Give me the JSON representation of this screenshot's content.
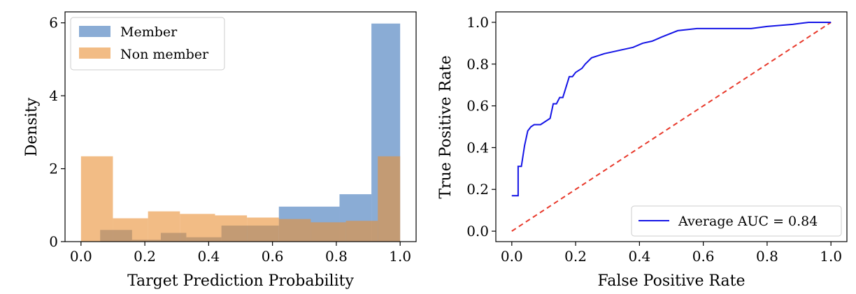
{
  "chart_data": [
    {
      "type": "bar",
      "subtype": "histogram",
      "xlabel": "Target Prediction Probability",
      "ylabel": "Density",
      "xlim": [
        -0.05,
        1.05
      ],
      "ylim": [
        0,
        6.3
      ],
      "xticks": [
        "0.0",
        "0.2",
        "0.4",
        "0.6",
        "0.8",
        "1.0"
      ],
      "yticks": [
        "0",
        "2",
        "4",
        "6"
      ],
      "grid": false,
      "legend_position": "top-left",
      "series": [
        {
          "name": "Member",
          "color": "#4c7fbf",
          "opacity": 0.65,
          "bins": [
            {
              "x0": 0.06,
              "x1": 0.16,
              "y": 0.32
            },
            {
              "x0": 0.16,
              "x1": 0.25,
              "y": 0.05
            },
            {
              "x0": 0.25,
              "x1": 0.33,
              "y": 0.24
            },
            {
              "x0": 0.33,
              "x1": 0.44,
              "y": 0.12
            },
            {
              "x0": 0.44,
              "x1": 0.62,
              "y": 0.44
            },
            {
              "x0": 0.62,
              "x1": 0.81,
              "y": 0.96
            },
            {
              "x0": 0.81,
              "x1": 0.91,
              "y": 1.3
            },
            {
              "x0": 0.91,
              "x1": 1.0,
              "y": 5.98
            }
          ]
        },
        {
          "name": "Non member",
          "color": "#ea8f34",
          "opacity": 0.6,
          "bins": [
            {
              "x0": 0.0,
              "x1": 0.1,
              "y": 2.34
            },
            {
              "x0": 0.1,
              "x1": 0.21,
              "y": 0.64
            },
            {
              "x0": 0.21,
              "x1": 0.31,
              "y": 0.83
            },
            {
              "x0": 0.31,
              "x1": 0.42,
              "y": 0.76
            },
            {
              "x0": 0.42,
              "x1": 0.52,
              "y": 0.72
            },
            {
              "x0": 0.52,
              "x1": 0.62,
              "y": 0.66
            },
            {
              "x0": 0.62,
              "x1": 0.72,
              "y": 0.62
            },
            {
              "x0": 0.72,
              "x1": 0.83,
              "y": 0.53
            },
            {
              "x0": 0.83,
              "x1": 0.93,
              "y": 0.57
            },
            {
              "x0": 0.93,
              "x1": 1.0,
              "y": 2.34
            }
          ]
        }
      ]
    },
    {
      "type": "line",
      "xlabel": "False Positive Rate",
      "ylabel": "True Positive Rate",
      "xlim": [
        -0.05,
        1.05
      ],
      "ylim": [
        -0.05,
        1.05
      ],
      "xticks": [
        "0.0",
        "0.2",
        "0.4",
        "0.6",
        "0.8",
        "1.0"
      ],
      "yticks": [
        "0.0",
        "0.2",
        "0.4",
        "0.6",
        "0.8",
        "1.0"
      ],
      "grid": false,
      "legend_position": "bottom-right",
      "series": [
        {
          "name": "Average AUC = 0.84",
          "color": "#1414e6",
          "style": "solid",
          "x": [
            0.0,
            0.02,
            0.02,
            0.03,
            0.04,
            0.04,
            0.05,
            0.06,
            0.07,
            0.08,
            0.09,
            0.12,
            0.13,
            0.14,
            0.15,
            0.16,
            0.17,
            0.18,
            0.19,
            0.2,
            0.22,
            0.23,
            0.25,
            0.27,
            0.29,
            0.32,
            0.35,
            0.38,
            0.41,
            0.44,
            0.47,
            0.52,
            0.58,
            0.65,
            0.75,
            0.8,
            0.88,
            0.93,
            1.0
          ],
          "y": [
            0.17,
            0.17,
            0.31,
            0.31,
            0.41,
            0.41,
            0.48,
            0.5,
            0.51,
            0.51,
            0.51,
            0.54,
            0.61,
            0.61,
            0.64,
            0.64,
            0.69,
            0.74,
            0.74,
            0.76,
            0.78,
            0.8,
            0.83,
            0.84,
            0.85,
            0.86,
            0.87,
            0.88,
            0.9,
            0.91,
            0.93,
            0.96,
            0.97,
            0.97,
            0.97,
            0.98,
            0.99,
            1.0,
            1.0
          ]
        },
        {
          "color": "#e8392b",
          "style": "dashed",
          "x": [
            0.0,
            1.0
          ],
          "y": [
            0.0,
            1.0
          ]
        }
      ]
    }
  ]
}
